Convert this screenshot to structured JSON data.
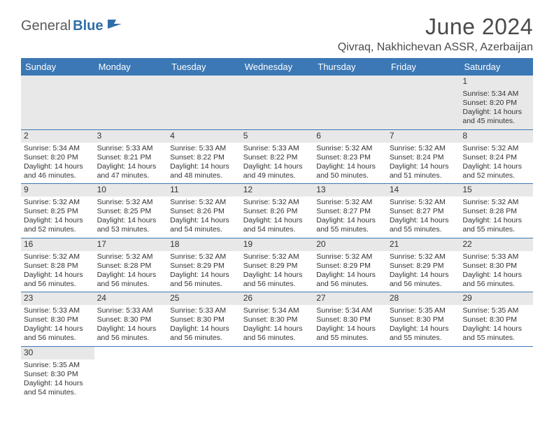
{
  "brand": {
    "left": "General",
    "right": "Blue"
  },
  "title": "June 2024",
  "location": "Qivraq, Nakhichevan ASSR, Azerbaijan",
  "colors": {
    "header_bg": "#3b78b5",
    "header_text": "#ffffff",
    "row_border": "#3b78b5",
    "band_bg": "#e8e8e8",
    "brand_gray": "#5a5a5a",
    "brand_blue": "#2f6fa8"
  },
  "day_headers": [
    "Sunday",
    "Monday",
    "Tuesday",
    "Wednesday",
    "Thursday",
    "Friday",
    "Saturday"
  ],
  "weeks": [
    [
      null,
      null,
      null,
      null,
      null,
      null,
      {
        "n": "1",
        "sr": "5:34 AM",
        "ss": "8:20 PM",
        "dl": "14 hours and 45 minutes."
      }
    ],
    [
      {
        "n": "2",
        "sr": "5:34 AM",
        "ss": "8:20 PM",
        "dl": "14 hours and 46 minutes."
      },
      {
        "n": "3",
        "sr": "5:33 AM",
        "ss": "8:21 PM",
        "dl": "14 hours and 47 minutes."
      },
      {
        "n": "4",
        "sr": "5:33 AM",
        "ss": "8:22 PM",
        "dl": "14 hours and 48 minutes."
      },
      {
        "n": "5",
        "sr": "5:33 AM",
        "ss": "8:22 PM",
        "dl": "14 hours and 49 minutes."
      },
      {
        "n": "6",
        "sr": "5:32 AM",
        "ss": "8:23 PM",
        "dl": "14 hours and 50 minutes."
      },
      {
        "n": "7",
        "sr": "5:32 AM",
        "ss": "8:24 PM",
        "dl": "14 hours and 51 minutes."
      },
      {
        "n": "8",
        "sr": "5:32 AM",
        "ss": "8:24 PM",
        "dl": "14 hours and 52 minutes."
      }
    ],
    [
      {
        "n": "9",
        "sr": "5:32 AM",
        "ss": "8:25 PM",
        "dl": "14 hours and 52 minutes."
      },
      {
        "n": "10",
        "sr": "5:32 AM",
        "ss": "8:25 PM",
        "dl": "14 hours and 53 minutes."
      },
      {
        "n": "11",
        "sr": "5:32 AM",
        "ss": "8:26 PM",
        "dl": "14 hours and 54 minutes."
      },
      {
        "n": "12",
        "sr": "5:32 AM",
        "ss": "8:26 PM",
        "dl": "14 hours and 54 minutes."
      },
      {
        "n": "13",
        "sr": "5:32 AM",
        "ss": "8:27 PM",
        "dl": "14 hours and 55 minutes."
      },
      {
        "n": "14",
        "sr": "5:32 AM",
        "ss": "8:27 PM",
        "dl": "14 hours and 55 minutes."
      },
      {
        "n": "15",
        "sr": "5:32 AM",
        "ss": "8:28 PM",
        "dl": "14 hours and 55 minutes."
      }
    ],
    [
      {
        "n": "16",
        "sr": "5:32 AM",
        "ss": "8:28 PM",
        "dl": "14 hours and 56 minutes."
      },
      {
        "n": "17",
        "sr": "5:32 AM",
        "ss": "8:28 PM",
        "dl": "14 hours and 56 minutes."
      },
      {
        "n": "18",
        "sr": "5:32 AM",
        "ss": "8:29 PM",
        "dl": "14 hours and 56 minutes."
      },
      {
        "n": "19",
        "sr": "5:32 AM",
        "ss": "8:29 PM",
        "dl": "14 hours and 56 minutes."
      },
      {
        "n": "20",
        "sr": "5:32 AM",
        "ss": "8:29 PM",
        "dl": "14 hours and 56 minutes."
      },
      {
        "n": "21",
        "sr": "5:32 AM",
        "ss": "8:29 PM",
        "dl": "14 hours and 56 minutes."
      },
      {
        "n": "22",
        "sr": "5:33 AM",
        "ss": "8:30 PM",
        "dl": "14 hours and 56 minutes."
      }
    ],
    [
      {
        "n": "23",
        "sr": "5:33 AM",
        "ss": "8:30 PM",
        "dl": "14 hours and 56 minutes."
      },
      {
        "n": "24",
        "sr": "5:33 AM",
        "ss": "8:30 PM",
        "dl": "14 hours and 56 minutes."
      },
      {
        "n": "25",
        "sr": "5:33 AM",
        "ss": "8:30 PM",
        "dl": "14 hours and 56 minutes."
      },
      {
        "n": "26",
        "sr": "5:34 AM",
        "ss": "8:30 PM",
        "dl": "14 hours and 56 minutes."
      },
      {
        "n": "27",
        "sr": "5:34 AM",
        "ss": "8:30 PM",
        "dl": "14 hours and 55 minutes."
      },
      {
        "n": "28",
        "sr": "5:35 AM",
        "ss": "8:30 PM",
        "dl": "14 hours and 55 minutes."
      },
      {
        "n": "29",
        "sr": "5:35 AM",
        "ss": "8:30 PM",
        "dl": "14 hours and 55 minutes."
      }
    ],
    [
      {
        "n": "30",
        "sr": "5:35 AM",
        "ss": "8:30 PM",
        "dl": "14 hours and 54 minutes."
      },
      null,
      null,
      null,
      null,
      null,
      null
    ]
  ],
  "labels": {
    "sunrise": "Sunrise:",
    "sunset": "Sunset:",
    "daylight": "Daylight:"
  }
}
